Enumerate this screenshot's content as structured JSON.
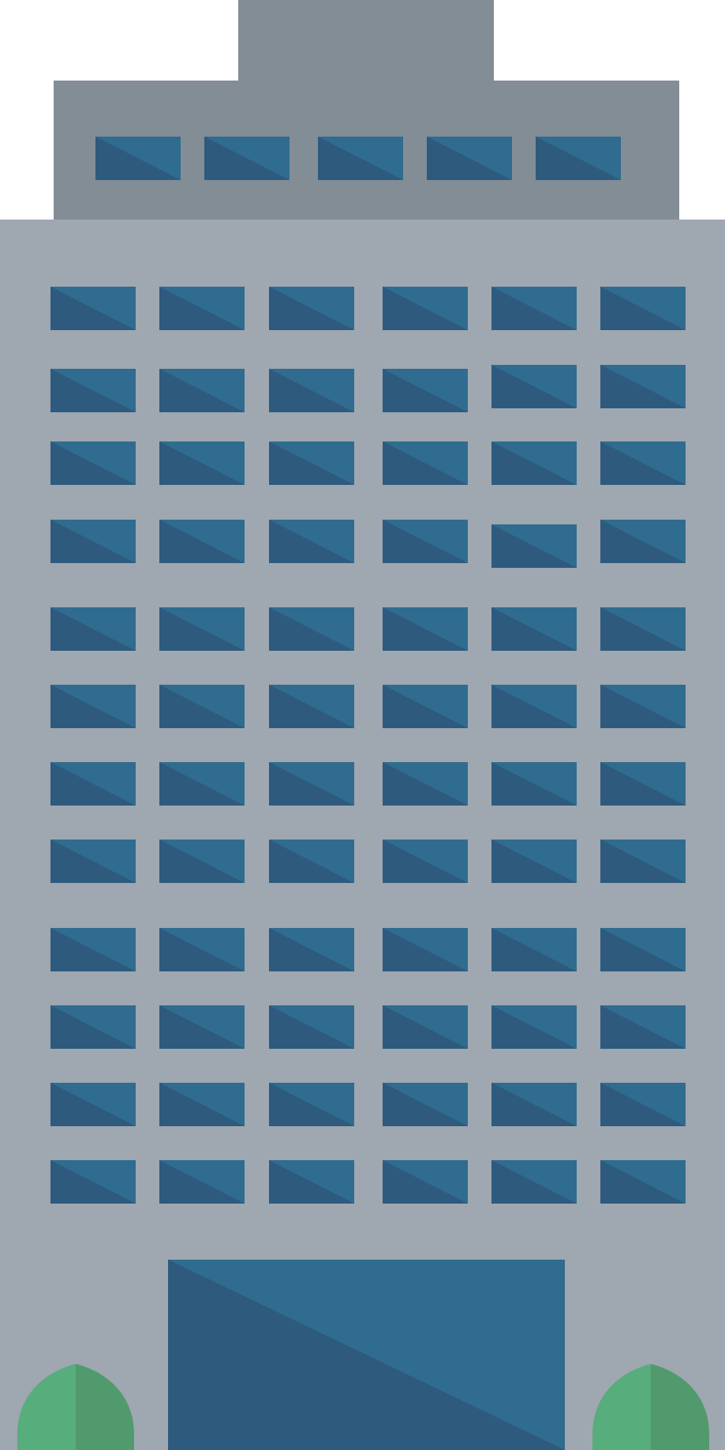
{
  "colors": {
    "background": "#ffffff",
    "tower_body": "#9fa7b1",
    "tower_top": "#838d96",
    "window_light": "#2f6c8f",
    "window_dark": "#2d5a7d",
    "tree_light": "#57ad7b",
    "tree_dark": "#519a6e"
  },
  "building": {
    "top_section": {
      "window_count": 5
    },
    "main_section": {
      "rows": 12,
      "columns": 6
    },
    "entrance": {
      "count": 1
    },
    "trees": {
      "count": 2
    }
  }
}
